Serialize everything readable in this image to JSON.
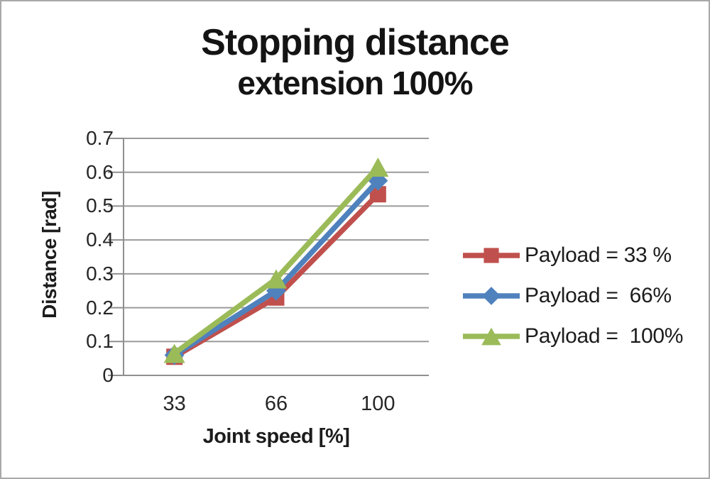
{
  "title": {
    "line1": "Stopping distance",
    "line2": "extension 100%"
  },
  "chart_data": {
    "type": "line",
    "title": "Stopping distance extension 100%",
    "categories": [
      "33",
      "66",
      "100"
    ],
    "xlabel": "Joint speed [%]",
    "ylabel": "Distance [rad]",
    "ylim": [
      0,
      0.7
    ],
    "ytick_step": 0.1,
    "yticks": [
      "0.7",
      "0.6",
      "0.5",
      "0.4",
      "0.3",
      "0.2",
      "0.1",
      "0"
    ],
    "grid": true,
    "legend_position": "right",
    "series": [
      {
        "name": "Payload = 33 %",
        "marker": "square",
        "color": "#C0504D",
        "values": [
          0.055,
          0.23,
          0.535
        ]
      },
      {
        "name": "Payload =  66%",
        "marker": "diamond",
        "color": "#4F81BD",
        "values": [
          0.06,
          0.25,
          0.575
        ]
      },
      {
        "name": "Payload =  100%",
        "marker": "triangle",
        "color": "#9BBB59",
        "values": [
          0.065,
          0.285,
          0.615
        ]
      }
    ],
    "grid_color": "#9b9b9b",
    "axis_color": "#8f8f8f",
    "text_color": "#262626"
  }
}
